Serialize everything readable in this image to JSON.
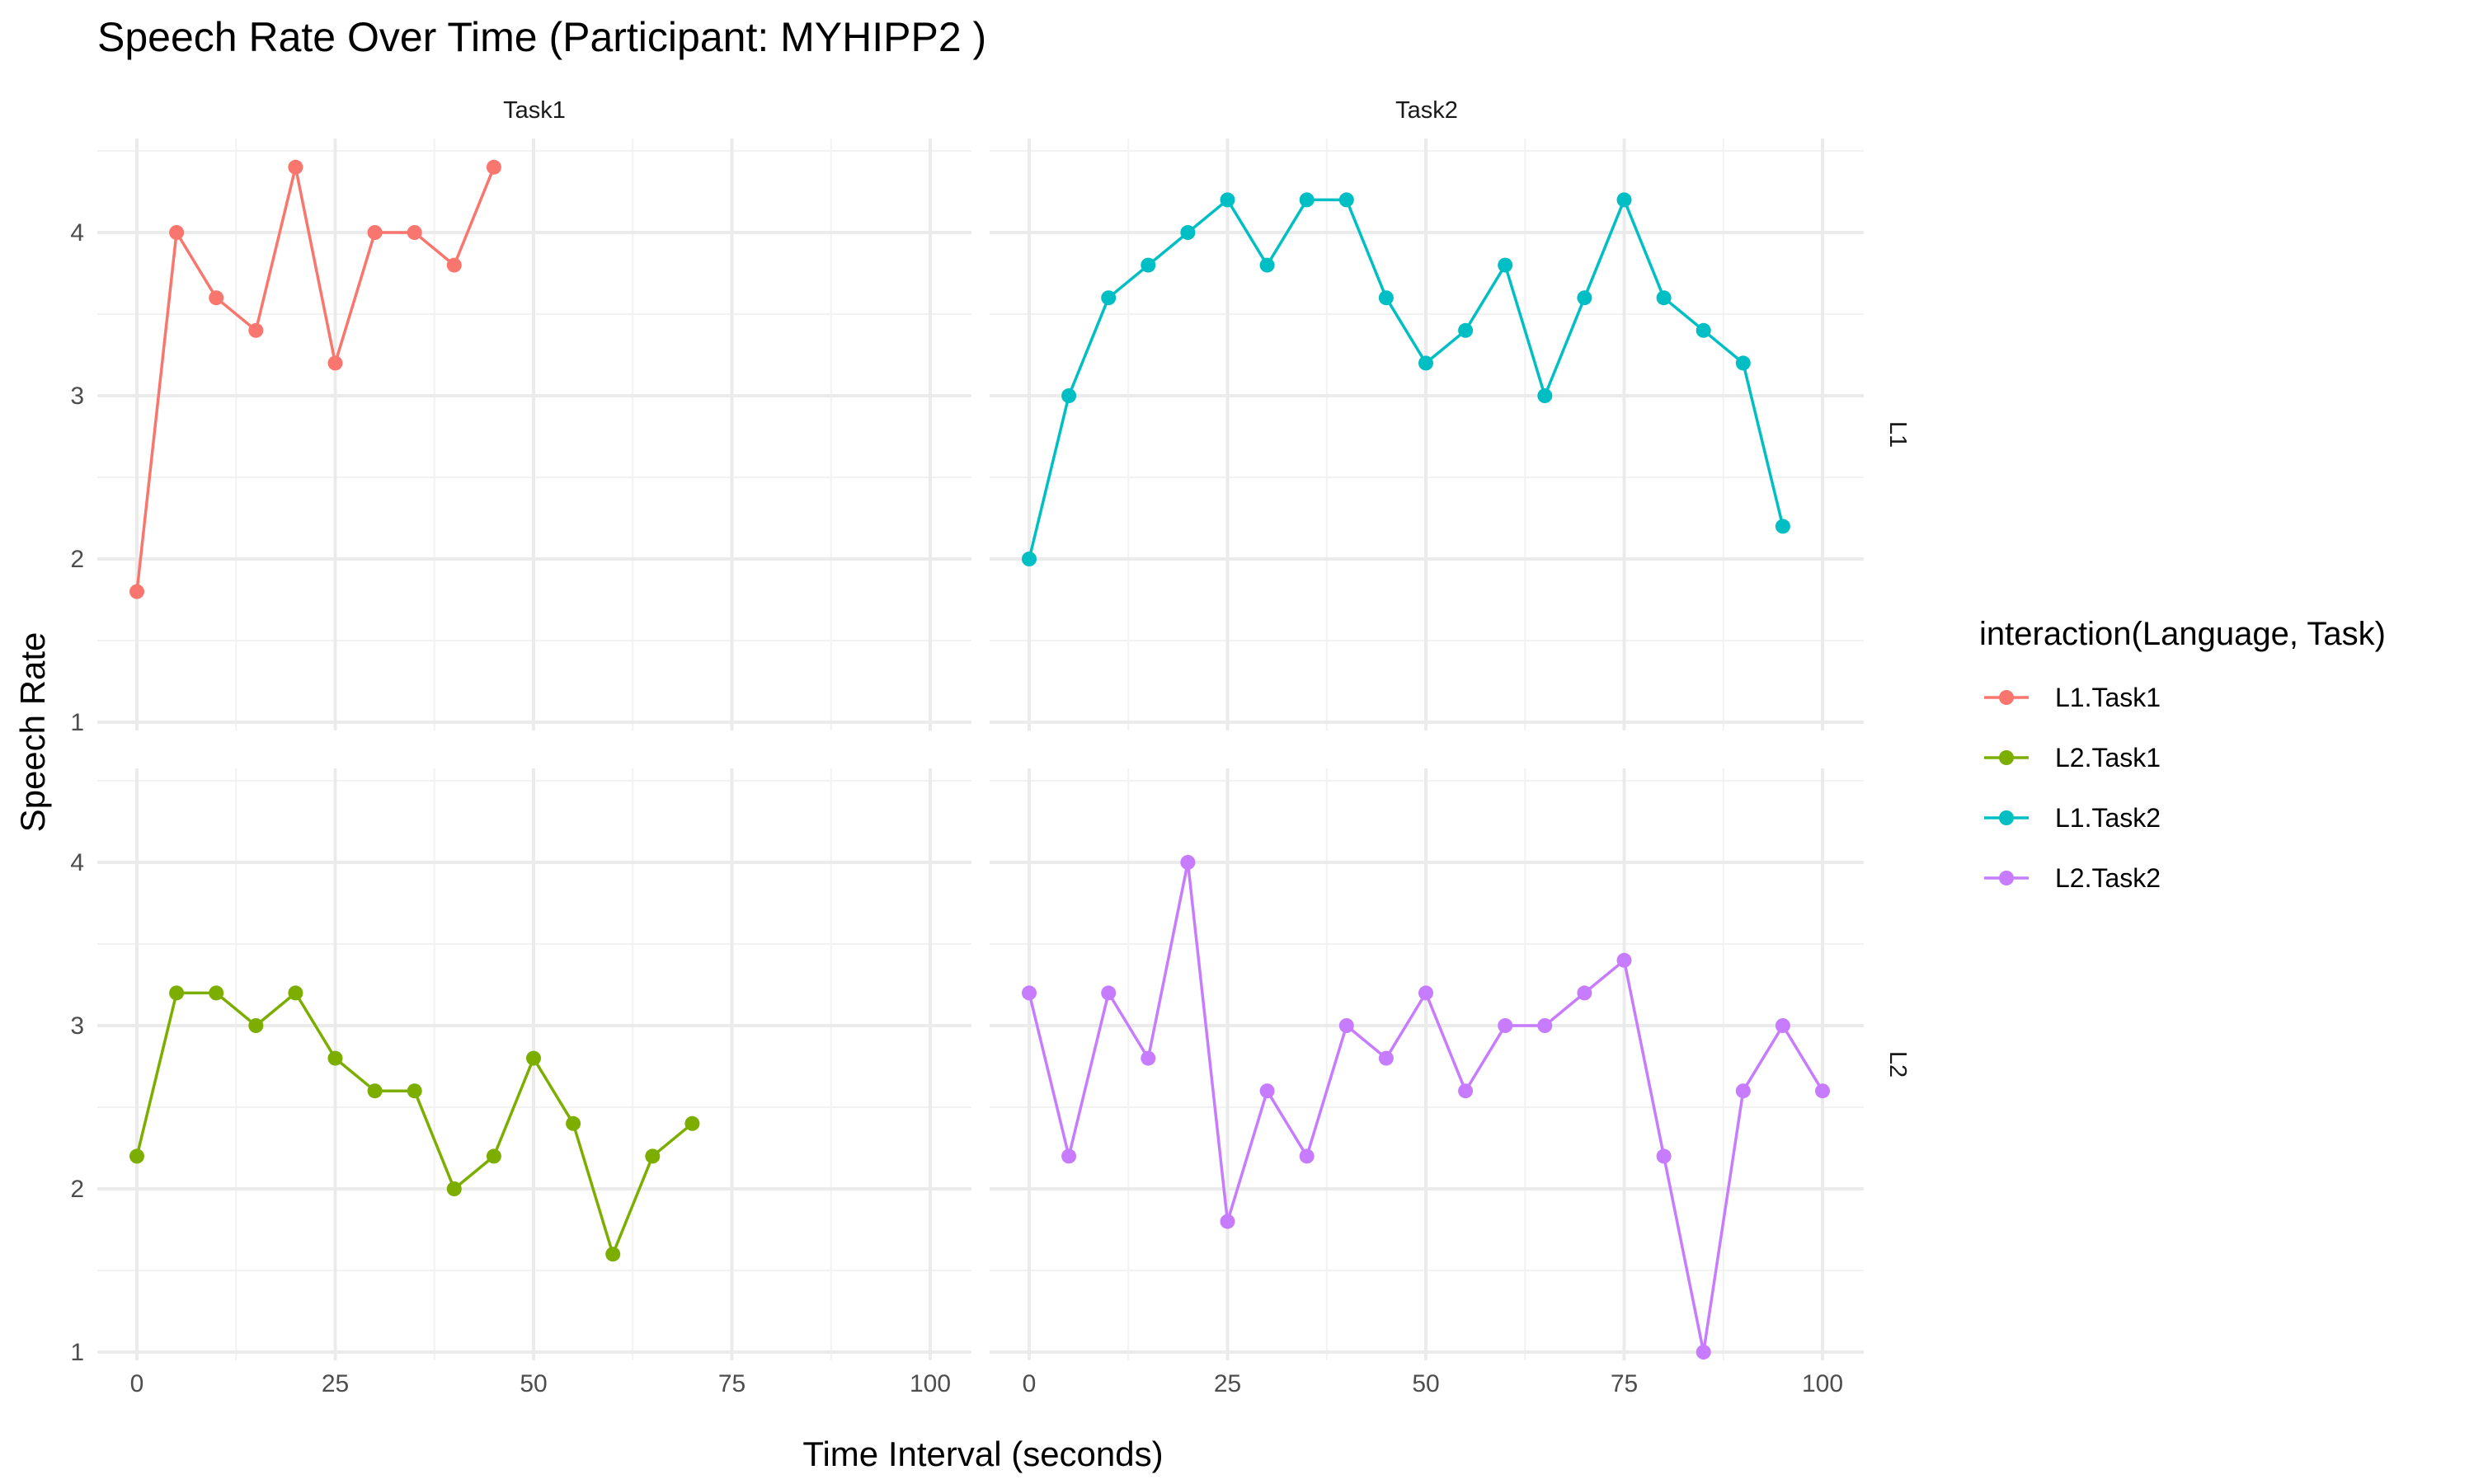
{
  "chart_data": {
    "type": "line",
    "title": "Speech Rate Over Time (Participant: MYHIPP2 )",
    "xlabel": "Time Interval (seconds)",
    "ylabel": "Speech Rate",
    "xlim": [
      0,
      100
    ],
    "ylim": [
      1,
      4.4
    ],
    "x_ticks": [
      0,
      25,
      50,
      75,
      100
    ],
    "y_ticks": [
      1,
      2,
      3,
      4
    ],
    "grid": true,
    "facet_columns": [
      "Task1",
      "Task2"
    ],
    "facet_rows": [
      "L1",
      "L2"
    ],
    "legend": {
      "title": "interaction(Language, Task)",
      "position": "right",
      "entries": [
        "L1.Task1",
        "L2.Task1",
        "L1.Task2",
        "L2.Task2"
      ]
    },
    "series": [
      {
        "name": "L1.Task1",
        "color": "#F8766D",
        "row": "L1",
        "column": "Task1",
        "x": [
          0,
          5,
          10,
          15,
          20,
          25,
          30,
          35,
          40,
          45
        ],
        "values": [
          1.8,
          4.0,
          3.6,
          3.4,
          4.4,
          3.2,
          4.0,
          4.0,
          3.8,
          4.4
        ]
      },
      {
        "name": "L2.Task1",
        "color": "#7CAE00",
        "row": "L2",
        "column": "Task1",
        "x": [
          0,
          5,
          10,
          15,
          20,
          25,
          30,
          35,
          40,
          45,
          50,
          55,
          60,
          65,
          70
        ],
        "values": [
          2.2,
          3.2,
          3.2,
          3.0,
          3.2,
          2.8,
          2.6,
          2.6,
          2.0,
          2.2,
          2.8,
          2.4,
          1.6,
          2.2,
          2.4
        ]
      },
      {
        "name": "L1.Task2",
        "color": "#00BFC4",
        "row": "L1",
        "column": "Task2",
        "x": [
          0,
          5,
          10,
          15,
          20,
          25,
          30,
          35,
          40,
          45,
          50,
          55,
          60,
          65,
          70,
          75,
          80,
          85,
          90,
          95
        ],
        "values": [
          2.0,
          3.0,
          3.6,
          3.8,
          4.0,
          4.2,
          3.8,
          4.2,
          4.2,
          3.6,
          3.2,
          3.4,
          3.8,
          3.0,
          3.6,
          4.2,
          3.6,
          3.4,
          3.2,
          2.2
        ]
      },
      {
        "name": "L2.Task2",
        "color": "#C77CFF",
        "row": "L2",
        "column": "Task2",
        "x": [
          0,
          5,
          10,
          15,
          20,
          25,
          30,
          35,
          40,
          45,
          50,
          55,
          60,
          65,
          70,
          75,
          80,
          85,
          90,
          95,
          100
        ],
        "values": [
          3.2,
          2.2,
          3.2,
          2.8,
          4.0,
          1.8,
          2.6,
          2.2,
          3.0,
          2.8,
          3.2,
          2.6,
          3.0,
          3.0,
          3.2,
          3.4,
          2.2,
          1.0,
          2.6,
          3.0,
          2.6
        ]
      }
    ]
  }
}
